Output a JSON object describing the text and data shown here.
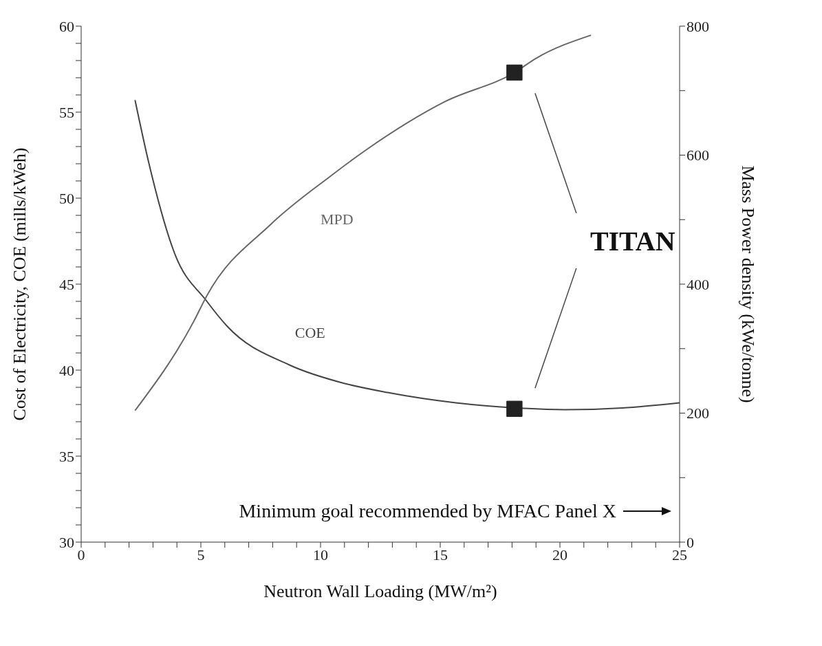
{
  "chart_data": {
    "type": "line",
    "xlabel": "Neutron Wall Loading (MW/m²)",
    "ylabel": "Cost of Electricity, COE (mills/kWeh)",
    "y2label": "Mass Power density (kWe/tonne)",
    "annotations": [
      "TITAN",
      "Minimum goal recommended by MFAC Panel X"
    ],
    "series": [
      {
        "name": "COE",
        "color": "#444444",
        "axis": "y",
        "x": [
          2.25,
          2.8,
          3.9,
          5.25,
          6.1,
          8.7,
          10.8,
          12.8,
          15.65,
          18.2,
          20.2,
          22.6,
          25
        ],
        "values": [
          55.7,
          52.2,
          46.8,
          44.0,
          42.55,
          40.3,
          39.3,
          38.7,
          38.1,
          37.8,
          37.7,
          37.8,
          38.1
        ]
      },
      {
        "name": "MPD",
        "color": "#666666",
        "axis": "y2",
        "x": [
          2.25,
          4.7,
          5.25,
          7.9,
          10.4,
          11.9,
          15.2,
          18.1,
          19.0,
          21.3
        ],
        "values": [
          204,
          342,
          382,
          492,
          567,
          608,
          683,
          728,
          750,
          786
        ]
      },
      {
        "type": "scatter",
        "marker": "square",
        "color": "#222222",
        "axis": "y",
        "x": [
          18.1
        ],
        "values": [
          37.75
        ]
      },
      {
        "type": "scatter",
        "marker": "square",
        "color": "#222222",
        "axis": "y2",
        "x": [
          18.1
        ],
        "values": [
          728
        ]
      }
    ],
    "xlim": [
      0,
      25
    ],
    "xticks": [
      0,
      {
        "value": 1,
        "label": null
      },
      {
        "value": 2,
        "label": null
      },
      {
        "value": 3,
        "label": null
      },
      {
        "value": 4,
        "label": null
      },
      5,
      {
        "value": 6,
        "label": null
      },
      {
        "value": 7,
        "label": null
      },
      {
        "value": 8,
        "label": null
      },
      {
        "value": 9,
        "label": null
      },
      10,
      {
        "value": 11,
        "label": null
      },
      {
        "value": 12,
        "label": null
      },
      {
        "value": 13,
        "label": null
      },
      {
        "value": 14,
        "label": null
      },
      15,
      {
        "value": 16,
        "label": null
      },
      {
        "value": 17,
        "label": null
      },
      {
        "value": 18,
        "label": null
      },
      {
        "value": 19,
        "label": null
      },
      20,
      {
        "value": 21,
        "label": null
      },
      {
        "value": 22,
        "label": null
      },
      {
        "value": 23,
        "label": null
      },
      {
        "value": 24,
        "label": null
      },
      25
    ],
    "ylim": [
      30,
      60
    ],
    "yticks": [
      30,
      {
        "value": 31,
        "label": null
      },
      {
        "value": 32,
        "label": null
      },
      {
        "value": 33,
        "label": null
      },
      {
        "value": 34,
        "label": null
      },
      35,
      {
        "value": 36,
        "label": null
      },
      {
        "value": 37,
        "label": null
      },
      {
        "value": 38,
        "label": null
      },
      {
        "value": 39,
        "label": null
      },
      40,
      {
        "value": 41,
        "label": null
      },
      {
        "value": 42,
        "label": null
      },
      {
        "value": 43,
        "label": null
      },
      {
        "value": 44,
        "label": null
      },
      45,
      {
        "value": 46,
        "label": null
      },
      {
        "value": 47,
        "label": null
      },
      {
        "value": 48,
        "label": null
      },
      {
        "value": 49,
        "label": null
      },
      50,
      {
        "value": 51,
        "label": null
      },
      {
        "value": 52,
        "label": null
      },
      {
        "value": 53,
        "label": null
      },
      {
        "value": 54,
        "label": null
      },
      55,
      {
        "value": 56,
        "label": null
      },
      {
        "value": 57,
        "label": null
      },
      {
        "value": 58,
        "label": null
      },
      {
        "value": 59,
        "label": null
      },
      60
    ],
    "y2lim": [
      0,
      800
    ],
    "y2ticks": [
      0,
      {
        "value": 100,
        "label": null
      },
      200,
      {
        "value": 300,
        "label": null
      },
      400,
      {
        "value": 500,
        "label": null
      },
      600,
      {
        "value": 700,
        "label": null
      },
      800
    ],
    "marker": "none",
    "line_style": "solid",
    "grid": false,
    "legend": false
  }
}
